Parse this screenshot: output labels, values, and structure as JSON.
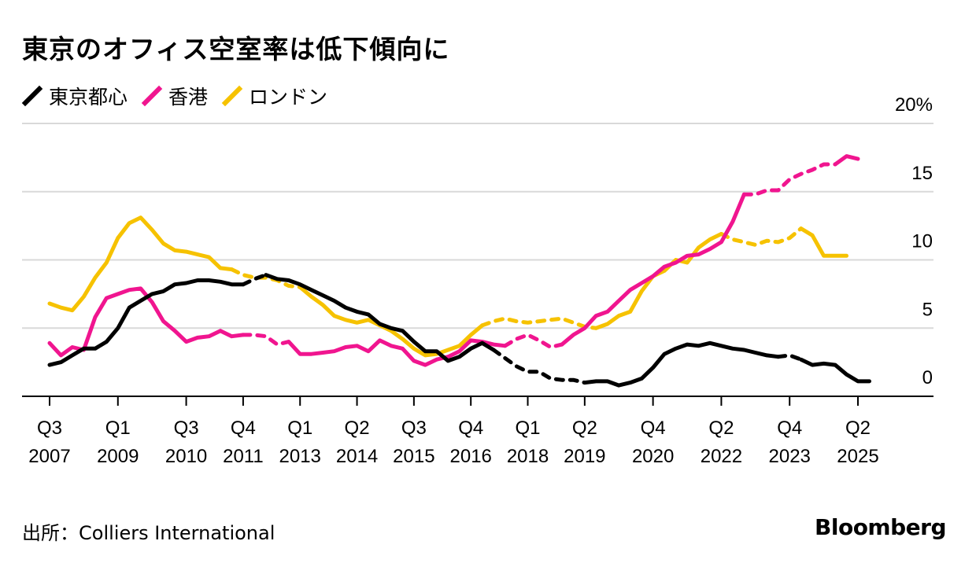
{
  "title": "東京のオフィス空室率は低下傾向に",
  "source": "出所：Colliers International",
  "brand": "Bloomberg",
  "colors": {
    "tokyo": "#000000",
    "hongkong": "#f0158f",
    "london": "#f6c200",
    "grid": "#d9d9d9"
  },
  "chart_data": {
    "type": "line",
    "title": "東京のオフィス空室率は低下傾向に",
    "xlabel": "",
    "ylabel": "",
    "ylim": [
      0,
      20
    ],
    "yticks": [
      0,
      5,
      10,
      15,
      20
    ],
    "ytick_labels": [
      "0",
      "5",
      "10",
      "15",
      "20%"
    ],
    "y_axis_position": "right",
    "grid": true,
    "legend_position": "top-left",
    "x_range": [
      2007.5,
      2026.75
    ],
    "xticks": [
      {
        "x": 2007.5,
        "label": [
          "Q3",
          "2007"
        ]
      },
      {
        "x": 2009.0,
        "label": [
          "Q1",
          "2009"
        ]
      },
      {
        "x": 2010.5,
        "label": [
          "Q3",
          "2010"
        ]
      },
      {
        "x": 2011.75,
        "label": [
          "Q4",
          "2011"
        ]
      },
      {
        "x": 2013.0,
        "label": [
          "Q1",
          "2013"
        ]
      },
      {
        "x": 2014.25,
        "label": [
          "Q2",
          "2014"
        ]
      },
      {
        "x": 2015.5,
        "label": [
          "Q3",
          "2015"
        ]
      },
      {
        "x": 2016.75,
        "label": [
          "Q4",
          "2016"
        ]
      },
      {
        "x": 2018.0,
        "label": [
          "Q1",
          "2018"
        ]
      },
      {
        "x": 2019.25,
        "label": [
          "Q2",
          "2019"
        ]
      },
      {
        "x": 2020.75,
        "label": [
          "Q4",
          "2020"
        ]
      },
      {
        "x": 2022.25,
        "label": [
          "Q2",
          "2022"
        ]
      },
      {
        "x": 2023.75,
        "label": [
          "Q4",
          "2023"
        ]
      },
      {
        "x": 2025.25,
        "label": [
          "Q2",
          "2025"
        ]
      }
    ],
    "series": [
      {
        "name": "東京都心",
        "color_key": "tokyo",
        "points": [
          [
            2007.5,
            2.3
          ],
          [
            2007.75,
            2.5
          ],
          [
            2008.0,
            3.0
          ],
          [
            2008.25,
            3.5
          ],
          [
            2008.5,
            3.5
          ],
          [
            2008.75,
            4.0
          ],
          [
            2009.0,
            5.0
          ],
          [
            2009.25,
            6.5
          ],
          [
            2009.5,
            7.0
          ],
          [
            2009.75,
            7.5
          ],
          [
            2010.0,
            7.7
          ],
          [
            2010.25,
            8.2
          ],
          [
            2010.5,
            8.3
          ],
          [
            2010.75,
            8.5
          ],
          [
            2011.0,
            8.5
          ],
          [
            2011.25,
            8.4
          ],
          [
            2011.5,
            8.2
          ],
          [
            2011.75,
            8.2
          ],
          [
            2012.0,
            8.6
          ],
          [
            2012.25,
            8.9
          ],
          [
            2012.5,
            8.6
          ],
          [
            2012.75,
            8.5
          ],
          [
            2013.0,
            8.2
          ],
          [
            2013.25,
            7.8
          ],
          [
            2013.5,
            7.4
          ],
          [
            2013.75,
            7.0
          ],
          [
            2014.0,
            6.5
          ],
          [
            2014.25,
            6.2
          ],
          [
            2014.5,
            6.0
          ],
          [
            2014.75,
            5.3
          ],
          [
            2015.0,
            5.0
          ],
          [
            2015.25,
            4.8
          ],
          [
            2015.5,
            4.0
          ],
          [
            2015.75,
            3.3
          ],
          [
            2016.0,
            3.3
          ],
          [
            2016.25,
            2.6
          ],
          [
            2016.5,
            2.9
          ],
          [
            2016.75,
            3.5
          ],
          [
            2017.0,
            3.9
          ],
          [
            2017.25,
            3.4
          ],
          [
            2017.5,
            2.8
          ],
          [
            2017.75,
            2.2
          ],
          [
            2018.0,
            1.8
          ],
          [
            2018.25,
            1.8
          ],
          [
            2018.5,
            1.3
          ],
          [
            2018.75,
            1.2
          ],
          [
            2019.0,
            1.2
          ],
          [
            2019.25,
            1.0
          ],
          [
            2019.5,
            1.1
          ],
          [
            2019.75,
            1.1
          ],
          [
            2020.0,
            0.8
          ],
          [
            2020.25,
            1.0
          ],
          [
            2020.5,
            1.3
          ],
          [
            2020.75,
            2.1
          ],
          [
            2021.0,
            3.1
          ],
          [
            2021.25,
            3.5
          ],
          [
            2021.5,
            3.8
          ],
          [
            2021.75,
            3.7
          ],
          [
            2022.0,
            3.9
          ],
          [
            2022.25,
            3.7
          ],
          [
            2022.5,
            3.5
          ],
          [
            2022.75,
            3.4
          ],
          [
            2023.0,
            3.2
          ],
          [
            2023.25,
            3.0
          ],
          [
            2023.5,
            2.9
          ],
          [
            2023.75,
            3.0
          ],
          [
            2024.0,
            2.7
          ],
          [
            2024.25,
            2.3
          ],
          [
            2024.5,
            2.4
          ],
          [
            2024.75,
            2.3
          ],
          [
            2025.0,
            1.6
          ],
          [
            2025.25,
            1.1
          ],
          [
            2025.5,
            1.1
          ]
        ],
        "dashed": [
          [
            2011.75,
            2012.25
          ],
          [
            2017.25,
            2019.25
          ],
          [
            2023.5,
            2024.0
          ]
        ]
      },
      {
        "name": "香港",
        "color_key": "hongkong",
        "points": [
          [
            2007.5,
            3.9
          ],
          [
            2007.75,
            3.0
          ],
          [
            2008.0,
            3.6
          ],
          [
            2008.25,
            3.4
          ],
          [
            2008.5,
            5.8
          ],
          [
            2008.75,
            7.2
          ],
          [
            2009.0,
            7.5
          ],
          [
            2009.25,
            7.8
          ],
          [
            2009.5,
            7.9
          ],
          [
            2009.75,
            6.9
          ],
          [
            2010.0,
            5.5
          ],
          [
            2010.25,
            4.8
          ],
          [
            2010.5,
            4.0
          ],
          [
            2010.75,
            4.3
          ],
          [
            2011.0,
            4.4
          ],
          [
            2011.25,
            4.8
          ],
          [
            2011.5,
            4.4
          ],
          [
            2011.75,
            4.5
          ],
          [
            2012.0,
            4.5
          ],
          [
            2012.25,
            4.4
          ],
          [
            2012.5,
            3.8
          ],
          [
            2012.75,
            4.0
          ],
          [
            2013.0,
            3.1
          ],
          [
            2013.25,
            3.1
          ],
          [
            2013.5,
            3.2
          ],
          [
            2013.75,
            3.3
          ],
          [
            2014.0,
            3.6
          ],
          [
            2014.25,
            3.7
          ],
          [
            2014.5,
            3.3
          ],
          [
            2014.75,
            4.1
          ],
          [
            2015.0,
            3.7
          ],
          [
            2015.25,
            3.5
          ],
          [
            2015.5,
            2.6
          ],
          [
            2015.75,
            2.3
          ],
          [
            2016.0,
            2.7
          ],
          [
            2016.25,
            2.9
          ],
          [
            2016.5,
            3.3
          ],
          [
            2016.75,
            4.1
          ],
          [
            2017.0,
            4.0
          ],
          [
            2017.25,
            3.8
          ],
          [
            2017.5,
            3.7
          ],
          [
            2017.75,
            4.2
          ],
          [
            2018.0,
            4.5
          ],
          [
            2018.25,
            4.1
          ],
          [
            2018.5,
            3.6
          ],
          [
            2018.75,
            3.8
          ],
          [
            2019.0,
            4.5
          ],
          [
            2019.25,
            5.0
          ],
          [
            2019.5,
            5.9
          ],
          [
            2019.75,
            6.2
          ],
          [
            2020.0,
            7.0
          ],
          [
            2020.25,
            7.8
          ],
          [
            2020.5,
            8.3
          ],
          [
            2020.75,
            8.8
          ],
          [
            2021.0,
            9.5
          ],
          [
            2021.25,
            9.8
          ],
          [
            2021.5,
            10.3
          ],
          [
            2021.75,
            10.4
          ],
          [
            2022.0,
            10.8
          ],
          [
            2022.25,
            11.3
          ],
          [
            2022.5,
            12.8
          ],
          [
            2022.75,
            14.8
          ],
          [
            2023.0,
            14.8
          ],
          [
            2023.25,
            15.1
          ],
          [
            2023.5,
            15.1
          ],
          [
            2023.75,
            15.9
          ],
          [
            2024.0,
            16.3
          ],
          [
            2024.25,
            16.6
          ],
          [
            2024.5,
            17.0
          ],
          [
            2024.75,
            17.0
          ],
          [
            2025.0,
            17.6
          ],
          [
            2025.25,
            17.4
          ]
        ],
        "dashed": [
          [
            2011.75,
            2012.75
          ],
          [
            2017.5,
            2018.75
          ],
          [
            2022.75,
            2024.75
          ]
        ]
      },
      {
        "name": "ロンドン",
        "color_key": "london",
        "points": [
          [
            2007.5,
            6.8
          ],
          [
            2007.75,
            6.5
          ],
          [
            2008.0,
            6.3
          ],
          [
            2008.25,
            7.3
          ],
          [
            2008.5,
            8.7
          ],
          [
            2008.75,
            9.8
          ],
          [
            2009.0,
            11.6
          ],
          [
            2009.25,
            12.7
          ],
          [
            2009.5,
            13.1
          ],
          [
            2009.75,
            12.2
          ],
          [
            2010.0,
            11.2
          ],
          [
            2010.25,
            10.7
          ],
          [
            2010.5,
            10.6
          ],
          [
            2010.75,
            10.4
          ],
          [
            2011.0,
            10.2
          ],
          [
            2011.25,
            9.4
          ],
          [
            2011.5,
            9.3
          ],
          [
            2011.75,
            8.9
          ],
          [
            2012.0,
            8.7
          ],
          [
            2012.25,
            8.7
          ],
          [
            2012.5,
            8.5
          ],
          [
            2012.75,
            8.1
          ],
          [
            2013.0,
            8.0
          ],
          [
            2013.25,
            7.3
          ],
          [
            2013.5,
            6.7
          ],
          [
            2013.75,
            5.9
          ],
          [
            2014.0,
            5.6
          ],
          [
            2014.25,
            5.4
          ],
          [
            2014.5,
            5.6
          ],
          [
            2014.75,
            5.2
          ],
          [
            2015.0,
            4.8
          ],
          [
            2015.25,
            4.2
          ],
          [
            2015.5,
            3.5
          ],
          [
            2015.75,
            3.0
          ],
          [
            2016.0,
            3.1
          ],
          [
            2016.25,
            3.4
          ],
          [
            2016.5,
            3.7
          ],
          [
            2016.75,
            4.5
          ],
          [
            2017.0,
            5.2
          ],
          [
            2017.25,
            5.5
          ],
          [
            2017.5,
            5.7
          ],
          [
            2017.75,
            5.5
          ],
          [
            2018.0,
            5.4
          ],
          [
            2018.25,
            5.5
          ],
          [
            2018.5,
            5.6
          ],
          [
            2018.75,
            5.7
          ],
          [
            2019.0,
            5.4
          ],
          [
            2019.25,
            5.1
          ],
          [
            2019.5,
            5.0
          ],
          [
            2019.75,
            5.3
          ],
          [
            2020.0,
            5.9
          ],
          [
            2020.25,
            6.2
          ],
          [
            2020.5,
            7.7
          ],
          [
            2020.75,
            8.8
          ],
          [
            2021.0,
            9.2
          ],
          [
            2021.25,
            10.0
          ],
          [
            2021.5,
            9.8
          ],
          [
            2021.75,
            10.9
          ],
          [
            2022.0,
            11.5
          ],
          [
            2022.25,
            11.9
          ],
          [
            2022.5,
            11.5
          ],
          [
            2022.75,
            11.3
          ],
          [
            2023.0,
            11.1
          ],
          [
            2023.25,
            11.4
          ],
          [
            2023.5,
            11.3
          ],
          [
            2023.75,
            11.6
          ],
          [
            2024.0,
            12.3
          ],
          [
            2024.25,
            11.8
          ],
          [
            2024.5,
            10.3
          ],
          [
            2024.75,
            10.3
          ],
          [
            2025.0,
            10.3
          ]
        ],
        "dashed": [
          [
            2011.5,
            2013.0
          ],
          [
            2017.0,
            2019.5
          ],
          [
            2022.25,
            2024.0
          ]
        ]
      }
    ]
  }
}
